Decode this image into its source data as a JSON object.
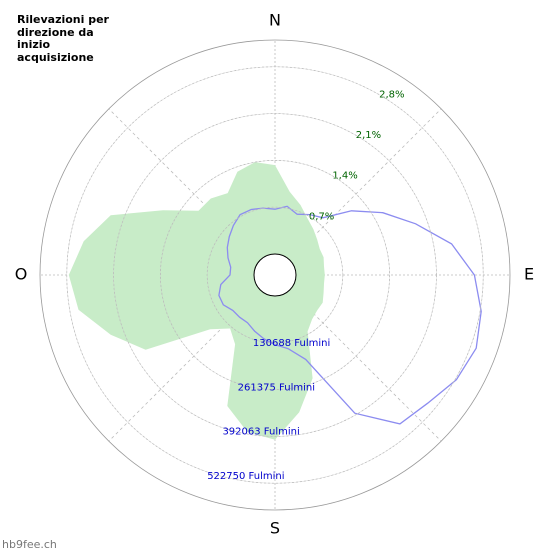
{
  "chart_data": {
    "type": "polar",
    "title": "Rilevazioni per direzione da inizio acquisizione",
    "directions": [
      "N",
      "E",
      "S",
      "O"
    ],
    "watermark": "hb9fee.ch",
    "theta": [
      0,
      10,
      20,
      30,
      40,
      50,
      60,
      70,
      80,
      90,
      100,
      110,
      120,
      130,
      140,
      150,
      160,
      170,
      180,
      190,
      200,
      210,
      220,
      230,
      240,
      250,
      260,
      270,
      280,
      290,
      300,
      310,
      320,
      330,
      340,
      350
    ],
    "series": [
      {
        "name": "Rilevazioni %",
        "color": "#c8ecc8",
        "kind": "area",
        "values": [
          1.33,
          0.95,
          0.8,
          0.66,
          0.58,
          0.51,
          0.46,
          0.46,
          0.43,
          0.43,
          0.43,
          0.46,
          0.51,
          0.51,
          0.55,
          0.66,
          1.33,
          1.77,
          2.15,
          2.07,
          1.77,
          0.88,
          0.73,
          0.95,
          1.92,
          2.3,
          2.67,
          2.77,
          2.59,
          2.3,
          1.62,
          1.18,
          1.18,
          1.1,
          1.33,
          1.4
        ]
      },
      {
        "name": "Fulmini",
        "color": "#8c8cf0",
        "kind": "line",
        "axis": "r2",
        "values": [
          125000,
          136000,
          122000,
          136000,
          150000,
          220000,
          289000,
          359000,
          442000,
          498000,
          526000,
          539000,
          526000,
          498000,
          484000,
          387000,
          192000,
          150000,
          136000,
          122000,
          108000,
          95000,
          95000,
          95000,
          108000,
          108000,
          95000,
          67000,
          67000,
          81000,
          95000,
          108000,
          122000,
          136000,
          136000,
          131000
        ]
      }
    ],
    "rlim": [
      0,
      3.2
    ],
    "rticks": [
      {
        "value": 0.7,
        "label": "0,7%"
      },
      {
        "value": 1.4,
        "label": "1,4%"
      },
      {
        "value": 2.1,
        "label": "2,1%"
      },
      {
        "value": 2.8,
        "label": "2,8%"
      }
    ],
    "r2lim": [
      0,
      597431
    ],
    "r2ticks": [
      {
        "value": 130688,
        "label": "130688 Fulmini"
      },
      {
        "value": 261375,
        "label": "261375 Fulmini"
      },
      {
        "value": 392063,
        "label": "392063 Fulmini"
      },
      {
        "value": 522750,
        "label": "522750 Fulmini"
      }
    ]
  }
}
